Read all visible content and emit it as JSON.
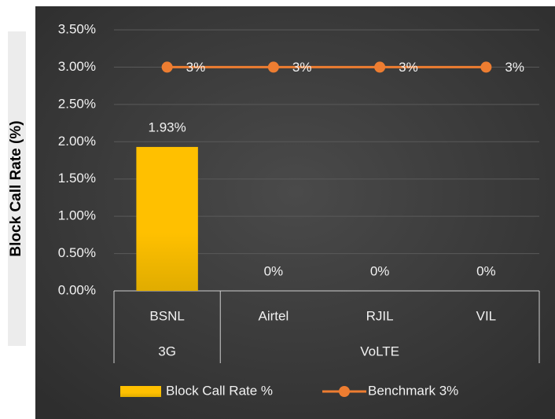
{
  "chart_data": {
    "type": "bar",
    "y_axis_label": "Block Call Rate (%)",
    "categories": [
      "BSNL",
      "Airtel",
      "RJIL",
      "VIL"
    ],
    "category_groups": [
      {
        "name": "3G",
        "span": 1
      },
      {
        "name": "VoLTE",
        "span": 3
      }
    ],
    "series": [
      {
        "name": "Block Call Rate %",
        "type": "bar",
        "color": "#ffc000",
        "values": [
          1.93,
          0,
          0,
          0
        ],
        "value_labels": [
          "1.93%",
          "0%",
          "0%",
          "0%"
        ]
      },
      {
        "name": "Benchmark 3%",
        "type": "line",
        "color": "#ed7d31",
        "values": [
          3,
          3,
          3,
          3
        ],
        "value_labels": [
          "3%",
          "3%",
          "3%",
          "3%"
        ]
      }
    ],
    "ylim": [
      0,
      3.5
    ],
    "yticks": [
      {
        "value": 0,
        "label": "0.00%"
      },
      {
        "value": 0.5,
        "label": "0.50%"
      },
      {
        "value": 1,
        "label": "1.00%"
      },
      {
        "value": 1.5,
        "label": "1.50%"
      },
      {
        "value": 2,
        "label": "2.00%"
      },
      {
        "value": 2.5,
        "label": "2.50%"
      },
      {
        "value": 3,
        "label": "3.00%"
      },
      {
        "value": 3.5,
        "label": "3.50%"
      }
    ],
    "grid": true,
    "legend": "bottom"
  }
}
